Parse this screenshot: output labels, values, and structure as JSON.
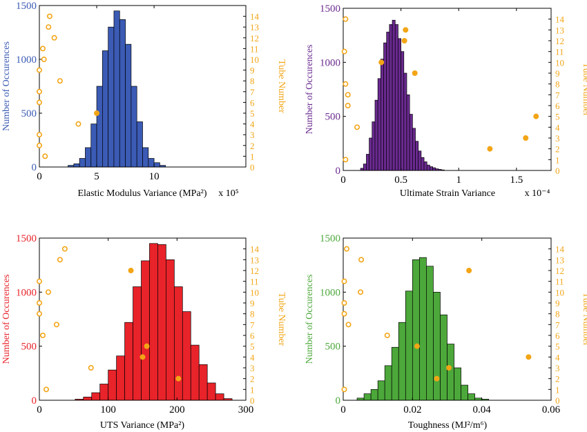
{
  "chart_data": [
    {
      "type": "bar",
      "xlabel": "Elastic Modulus Variance  (MPa²)",
      "x_multiplier": "x 10⁵",
      "ylabel_left": "Number of Occurences",
      "ylabel_right": "Tube Number",
      "xlim": [
        0,
        18
      ],
      "ylim_left": [
        0,
        1500
      ],
      "ylim_right": [
        0,
        15
      ],
      "x_ticks": [
        0,
        5,
        10
      ],
      "y_ticks_left": [
        0,
        500,
        1000,
        1500
      ],
      "y_ticks_right": [
        0,
        1,
        2,
        3,
        4,
        5,
        6,
        7,
        8,
        9,
        10,
        11,
        12,
        13,
        14
      ],
      "color_left": "#3b5bb5",
      "color_right": "#f2a516",
      "histogram": {
        "bin_width": 0.5,
        "bin_starts": [
          2.5,
          3,
          3.5,
          4,
          4.5,
          5,
          5.5,
          6,
          6.5,
          7,
          7.5,
          8,
          8.5,
          9,
          9.5,
          10,
          10.5
        ],
        "counts": [
          15,
          30,
          80,
          180,
          400,
          750,
          1080,
          1300,
          1450,
          1370,
          1140,
          750,
          420,
          180,
          80,
          40,
          15
        ]
      },
      "tube_points": [
        {
          "tube": 1,
          "value": 0.5,
          "filled": false
        },
        {
          "tube": 2,
          "value": 0,
          "filled": false
        },
        {
          "tube": 3,
          "value": 0,
          "filled": false
        },
        {
          "tube": 4,
          "value": 3.4,
          "filled": false
        },
        {
          "tube": 5,
          "value": 5.0,
          "filled": true
        },
        {
          "tube": 6,
          "value": 0,
          "filled": false
        },
        {
          "tube": 7,
          "value": 0,
          "filled": false
        },
        {
          "tube": 8,
          "value": 1.8,
          "filled": false
        },
        {
          "tube": 9,
          "value": 0,
          "filled": false
        },
        {
          "tube": 10,
          "value": 0.4,
          "filled": false
        },
        {
          "tube": 11,
          "value": 0.3,
          "filled": false
        },
        {
          "tube": 12,
          "value": 1.3,
          "filled": false
        },
        {
          "tube": 13,
          "value": 0.8,
          "filled": false
        },
        {
          "tube": 14,
          "value": 0.9,
          "filled": false
        }
      ]
    },
    {
      "type": "bar",
      "xlabel": "Ultimate Strain Variance",
      "x_multiplier": "x 10⁻⁴",
      "ylabel_left": "Number of Occurences",
      "ylabel_right": "Tube Number",
      "xlim": [
        0,
        1.8
      ],
      "ylim_left": [
        0,
        1500
      ],
      "ylim_right": [
        0,
        15
      ],
      "x_ticks": [
        0,
        0.5,
        1,
        1.5
      ],
      "y_ticks_left": [
        0,
        500,
        1000,
        1500
      ],
      "y_ticks_right": [
        0,
        1,
        2,
        3,
        4,
        5,
        6,
        7,
        8,
        9,
        10,
        11,
        12,
        13,
        14
      ],
      "color_left": "#6a2a90",
      "color_right": "#f2a516",
      "histogram": {
        "bin_width": 0.025,
        "bin_starts": [
          0.15,
          0.175,
          0.2,
          0.225,
          0.25,
          0.275,
          0.3,
          0.325,
          0.35,
          0.375,
          0.4,
          0.425,
          0.45,
          0.475,
          0.5,
          0.525,
          0.55,
          0.575,
          0.6,
          0.625,
          0.65,
          0.675,
          0.7,
          0.725,
          0.75,
          0.775,
          0.8,
          0.825,
          0.85
        ],
        "counts": [
          20,
          60,
          150,
          300,
          450,
          650,
          850,
          1030,
          1180,
          1280,
          1350,
          1390,
          1350,
          1220,
          1100,
          900,
          700,
          520,
          390,
          270,
          180,
          120,
          80,
          50,
          35,
          25,
          15,
          10,
          5
        ]
      },
      "tube_points": [
        {
          "tube": 1,
          "value": 0.02,
          "filled": false
        },
        {
          "tube": 2,
          "value": 1.27,
          "filled": true
        },
        {
          "tube": 3,
          "value": 1.58,
          "filled": true
        },
        {
          "tube": 4,
          "value": 0.12,
          "filled": false
        },
        {
          "tube": 5,
          "value": 1.67,
          "filled": true
        },
        {
          "tube": 6,
          "value": 0.04,
          "filled": false
        },
        {
          "tube": 7,
          "value": 0.04,
          "filled": false
        },
        {
          "tube": 8,
          "value": 0.02,
          "filled": false
        },
        {
          "tube": 9,
          "value": 0.62,
          "filled": true
        },
        {
          "tube": 10,
          "value": 0.33,
          "filled": true
        },
        {
          "tube": 11,
          "value": 0.01,
          "filled": false
        },
        {
          "tube": 12,
          "value": 0.53,
          "filled": true
        },
        {
          "tube": 13,
          "value": 0.54,
          "filled": true
        },
        {
          "tube": 14,
          "value": 0.02,
          "filled": false
        }
      ]
    },
    {
      "type": "bar",
      "xlabel": "UTS Variance (MPa²)",
      "x_multiplier": "",
      "ylabel_left": "Number of Occurences",
      "ylabel_right": "Tube Number",
      "xlim": [
        0,
        300
      ],
      "ylim_left": [
        0,
        1500
      ],
      "ylim_right": [
        0,
        15
      ],
      "x_ticks": [
        0,
        100,
        200,
        300
      ],
      "y_ticks_left": [
        0,
        500,
        1000,
        1500
      ],
      "y_ticks_right": [
        0,
        1,
        2,
        3,
        4,
        5,
        6,
        7,
        8,
        9,
        10,
        11,
        12,
        13,
        14
      ],
      "color_left": "#e8232a",
      "color_right": "#f2a516",
      "histogram": {
        "bin_width": 12,
        "bin_starts": [
          52,
          64,
          76,
          88,
          100,
          112,
          124,
          136,
          148,
          160,
          172,
          184,
          196,
          208,
          220,
          232,
          244,
          256,
          268
        ],
        "counts": [
          10,
          30,
          70,
          150,
          280,
          410,
          720,
          1050,
          1290,
          1450,
          1440,
          1300,
          1050,
          820,
          510,
          330,
          160,
          60,
          15
        ]
      },
      "tube_points": [
        {
          "tube": 1,
          "value": 10,
          "filled": false
        },
        {
          "tube": 2,
          "value": 202,
          "filled": true
        },
        {
          "tube": 3,
          "value": 75,
          "filled": false
        },
        {
          "tube": 4,
          "value": 150,
          "filled": true
        },
        {
          "tube": 5,
          "value": 156,
          "filled": true
        },
        {
          "tube": 6,
          "value": 5,
          "filled": false
        },
        {
          "tube": 7,
          "value": 25,
          "filled": false
        },
        {
          "tube": 8,
          "value": 0,
          "filled": false
        },
        {
          "tube": 9,
          "value": 0,
          "filled": false
        },
        {
          "tube": 10,
          "value": 13,
          "filled": false
        },
        {
          "tube": 11,
          "value": 0,
          "filled": false
        },
        {
          "tube": 12,
          "value": 133,
          "filled": true
        },
        {
          "tube": 13,
          "value": 30,
          "filled": false
        },
        {
          "tube": 14,
          "value": 37,
          "filled": false
        }
      ]
    },
    {
      "type": "bar",
      "xlabel": "Toughness (MJ²/m⁶)",
      "x_multiplier": "",
      "ylabel_left": "Number of Occurences",
      "ylabel_right": "Tube Number",
      "xlim": [
        0,
        0.06
      ],
      "ylim_left": [
        0,
        1500
      ],
      "ylim_right": [
        0,
        15
      ],
      "x_ticks": [
        0,
        0.02,
        0.04,
        0.06
      ],
      "y_ticks_left": [
        0,
        500,
        1000,
        1500
      ],
      "y_ticks_right": [
        0,
        1,
        2,
        3,
        4,
        5,
        6,
        7,
        8,
        9,
        10,
        11,
        12,
        13,
        14
      ],
      "color_left": "#4ca83a",
      "color_right": "#f2a516",
      "histogram": {
        "bin_width": 0.002,
        "bin_starts": [
          0.004,
          0.006,
          0.008,
          0.01,
          0.012,
          0.014,
          0.016,
          0.018,
          0.02,
          0.022,
          0.024,
          0.026,
          0.028,
          0.03,
          0.032,
          0.034,
          0.036,
          0.038,
          0.04
        ],
        "counts": [
          20,
          60,
          100,
          180,
          320,
          490,
          720,
          1010,
          1300,
          1320,
          1240,
          1000,
          790,
          520,
          300,
          140,
          60,
          20,
          10
        ]
      },
      "tube_points": [
        {
          "tube": 1,
          "value": 0.0003,
          "filled": false
        },
        {
          "tube": 2,
          "value": 0.027,
          "filled": true
        },
        {
          "tube": 3,
          "value": 0.0305,
          "filled": true
        },
        {
          "tube": 4,
          "value": 0.0535,
          "filled": true
        },
        {
          "tube": 5,
          "value": 0.0213,
          "filled": true
        },
        {
          "tube": 6,
          "value": 0.0127,
          "filled": false
        },
        {
          "tube": 7,
          "value": 0.0015,
          "filled": false
        },
        {
          "tube": 8,
          "value": 0.0003,
          "filled": false
        },
        {
          "tube": 9,
          "value": 0.0003,
          "filled": false
        },
        {
          "tube": 10,
          "value": 0.005,
          "filled": false
        },
        {
          "tube": 11,
          "value": 0.0003,
          "filled": false
        },
        {
          "tube": 12,
          "value": 0.0363,
          "filled": true
        },
        {
          "tube": 13,
          "value": 0.0052,
          "filled": false
        },
        {
          "tube": 14,
          "value": 0.001,
          "filled": false
        }
      ]
    }
  ]
}
